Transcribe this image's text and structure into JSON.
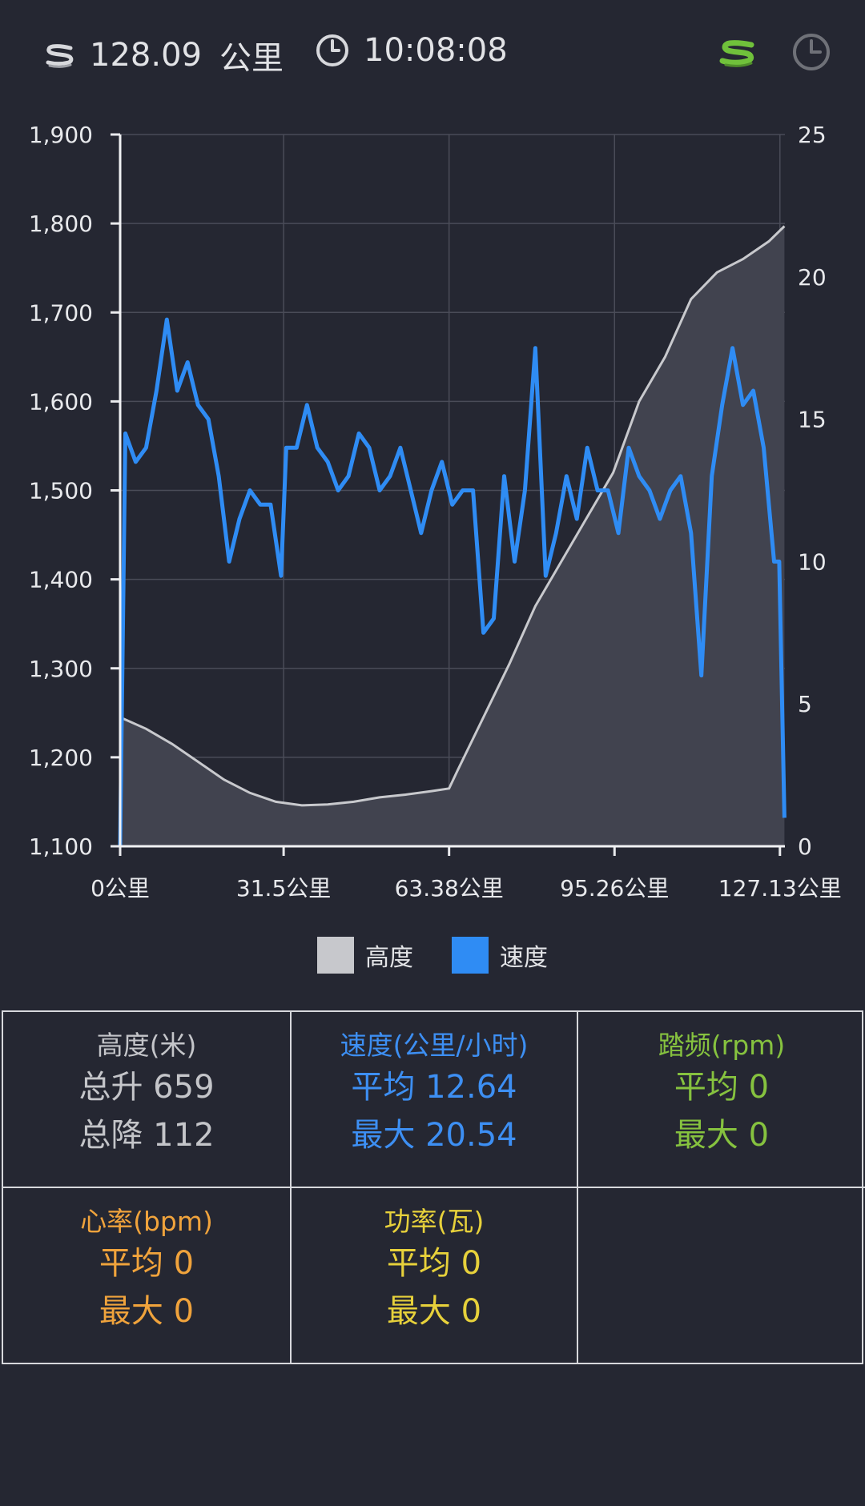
{
  "header": {
    "distance": "128.09",
    "distance_unit": "公里",
    "time": "10:08:08",
    "route_icon_name": "route-icon",
    "clock_icon_name": "clock-icon"
  },
  "chart_data": {
    "type": "line",
    "x_ticks": [
      "0公里",
      "31.5公里",
      "63.38公里",
      "95.26公里",
      "127.13公里"
    ],
    "y_left_ticks": [
      "1,100",
      "1,200",
      "1,300",
      "1,400",
      "1,500",
      "1,600",
      "1,700",
      "1,800",
      "1,900"
    ],
    "y_right_ticks": [
      "0",
      "5",
      "10",
      "15",
      "20",
      "25"
    ],
    "ylim_left": [
      1100,
      1900
    ],
    "ylim_right": [
      0,
      25
    ],
    "xlim": [
      0,
      128.09
    ],
    "grid": true,
    "legend": [
      {
        "name": "高度",
        "color": "#c7c8cc"
      },
      {
        "name": "速度",
        "color": "#2f8cf4"
      }
    ],
    "altitude_series": {
      "name": "高度",
      "x": [
        0,
        5,
        10,
        15,
        20,
        25,
        30,
        35,
        40,
        45,
        50,
        55,
        60,
        63.38,
        65,
        70,
        75,
        80,
        85,
        90,
        95,
        100,
        105,
        110,
        115,
        120,
        125,
        128
      ],
      "y": [
        1245,
        1232,
        1215,
        1195,
        1175,
        1160,
        1150,
        1146,
        1147,
        1150,
        1155,
        1158,
        1162,
        1165,
        1185,
        1245,
        1305,
        1370,
        1420,
        1470,
        1520,
        1600,
        1650,
        1715,
        1745,
        1760,
        1780,
        1797
      ]
    },
    "speed_series": {
      "name": "速度",
      "x": [
        0,
        1,
        3,
        5,
        7,
        9,
        11,
        13,
        15,
        17,
        19,
        21,
        23,
        25,
        27,
        29,
        31,
        32,
        34,
        36,
        38,
        40,
        42,
        44,
        46,
        48,
        50,
        52,
        54,
        56,
        58,
        60,
        62,
        64,
        66,
        68,
        70,
        72,
        74,
        76,
        78,
        80,
        82,
        84,
        86,
        88,
        90,
        92,
        94,
        96,
        98,
        100,
        102,
        104,
        106,
        108,
        110,
        112,
        114,
        116,
        118,
        120,
        122,
        124,
        126,
        127,
        128
      ],
      "y": [
        0,
        14.5,
        13.5,
        14,
        16,
        18.5,
        16,
        17,
        15.5,
        15,
        13,
        10,
        11.5,
        12.5,
        12,
        12,
        9.5,
        14,
        14,
        15.5,
        14,
        13.5,
        12.5,
        13,
        14.5,
        14,
        12.5,
        13,
        14,
        12.5,
        11,
        12.5,
        13.5,
        12,
        12.5,
        12.5,
        7.5,
        8,
        13,
        10,
        12.5,
        17.5,
        9.5,
        11,
        13,
        11.5,
        14,
        12.5,
        12.5,
        11,
        14,
        13,
        12.5,
        11.5,
        12.5,
        13,
        11,
        6,
        13,
        15.5,
        17.5,
        15.5,
        16,
        14,
        10,
        10,
        1
      ]
    }
  },
  "stats": {
    "altitude": {
      "title": "高度(米)",
      "line1": "总升 659",
      "line2": "总降 112",
      "color": "#c4c5c9"
    },
    "speed": {
      "title": "速度(公里/小时)",
      "line1": "平均 12.64",
      "line2": "最大 20.54",
      "color": "#3d8ff3"
    },
    "cadence": {
      "title": "踏频(rpm)",
      "line1": "平均 0",
      "line2": "最大 0",
      "color": "#86c23f"
    },
    "heart": {
      "title": "心率(bpm)",
      "line1": "平均 0",
      "line2": "最大 0",
      "color": "#f0a33c"
    },
    "power": {
      "title": "功率(瓦)",
      "line1": "平均 0",
      "line2": "最大 0",
      "color": "#e7d13b"
    }
  }
}
